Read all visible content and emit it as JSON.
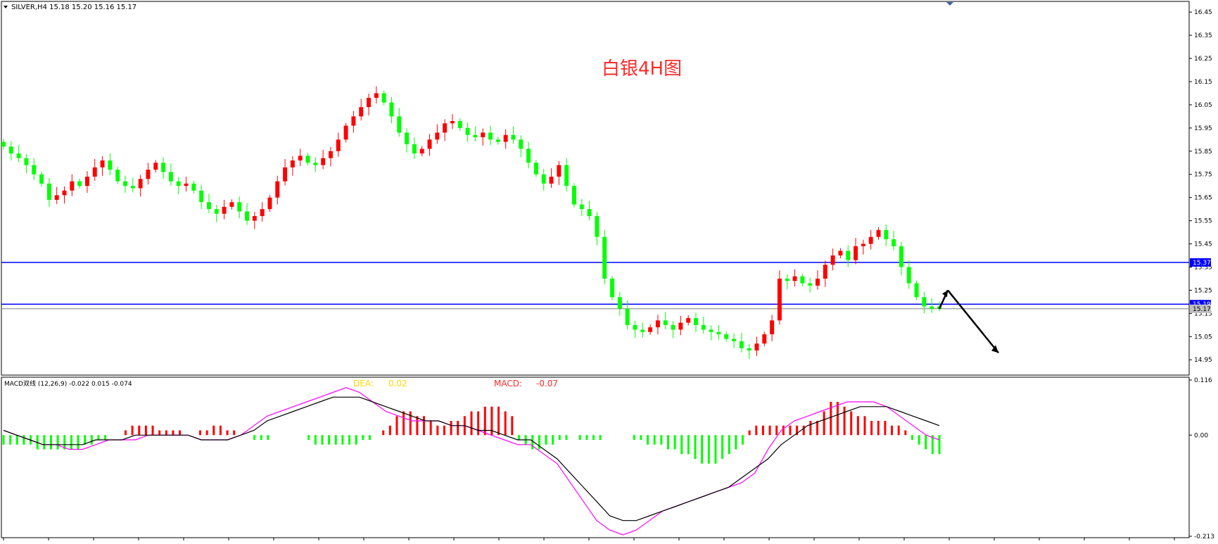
{
  "header": {
    "symbol_text": "SILVER,H4  15.18 15.20 15.16 15.17"
  },
  "annotation": {
    "title_text": "白银4H图",
    "title_color": "#ff2a2a"
  },
  "price_panel": {
    "axis_ticks": [
      "16.45",
      "16.35",
      "16.25",
      "16.15",
      "16.05",
      "15.95",
      "15.85",
      "15.75",
      "15.65",
      "15.55",
      "15.45",
      "15.35",
      "15.25",
      "15.15",
      "15.05",
      "14.95"
    ],
    "level_lines": [
      {
        "value": 15.37,
        "label": "15.37",
        "color": "#0000ff"
      },
      {
        "value": 15.19,
        "label": "15.19",
        "color": "#0000ff"
      }
    ],
    "current_price": {
      "value": 15.17,
      "label": "15.17",
      "color": "#808080"
    }
  },
  "macd_panel": {
    "header_text": "MACD双线 (12,26,9) -0.022 0.015 -0.074",
    "dea_label": "DEA:",
    "dea_value": "0.02",
    "dea_color": "#ffd700",
    "macd_label": "MACD:",
    "macd_value": "-0.07",
    "macd_color": "#ff2a2a",
    "axis_ticks": [
      "0.116",
      "0.00",
      "-0.213"
    ]
  },
  "chart_data": [
    {
      "type": "candlestick",
      "title": "白银4H图",
      "symbol": "SILVER,H4",
      "timeframe": "H4",
      "last_bar": {
        "open": 15.18,
        "high": 15.2,
        "low": 15.16,
        "close": 15.17
      },
      "y_range": [
        14.89,
        16.49
      ],
      "y_ticks": [
        16.45,
        16.35,
        16.25,
        16.15,
        16.05,
        15.95,
        15.85,
        15.75,
        15.65,
        15.55,
        15.45,
        15.35,
        15.25,
        15.15,
        15.05,
        14.95
      ],
      "horizontal_lines": [
        15.37,
        15.19
      ],
      "current_price": 15.17,
      "up_color": "#ff0000",
      "down_color": "#00ff00",
      "close_path": [
        15.87,
        15.84,
        15.82,
        15.79,
        15.75,
        15.71,
        15.64,
        15.66,
        15.68,
        15.72,
        15.7,
        15.74,
        15.78,
        15.81,
        15.77,
        15.72,
        15.7,
        15.69,
        15.73,
        15.77,
        15.8,
        15.76,
        15.72,
        15.7,
        15.71,
        15.68,
        15.63,
        15.6,
        15.58,
        15.61,
        15.63,
        15.59,
        15.55,
        15.57,
        15.6,
        15.65,
        15.72,
        15.78,
        15.81,
        15.83,
        15.8,
        15.79,
        15.82,
        15.85,
        15.9,
        15.96,
        16.0,
        16.04,
        16.08,
        16.1,
        16.06,
        16.0,
        15.93,
        15.88,
        15.84,
        15.86,
        15.9,
        15.93,
        15.97,
        15.98,
        15.95,
        15.92,
        15.91,
        15.93,
        15.9,
        15.89,
        15.92,
        15.9,
        15.86,
        15.8,
        15.75,
        15.71,
        15.74,
        15.79,
        15.7,
        15.62,
        15.6,
        15.57,
        15.48,
        15.3,
        15.22,
        15.17,
        15.1,
        15.08,
        15.07,
        15.09,
        15.12,
        15.1,
        15.08,
        15.11,
        15.13,
        15.1,
        15.08,
        15.07,
        15.06,
        15.04,
        15.03,
        15.0,
        14.99,
        15.02,
        15.06,
        15.12,
        15.3,
        15.29,
        15.31,
        15.28,
        15.27,
        15.3,
        15.36,
        15.4,
        15.42,
        15.38,
        15.44,
        15.45,
        15.48,
        15.51,
        15.47,
        15.44,
        15.35,
        15.28,
        15.22,
        15.18,
        15.17,
        15.17
      ],
      "annotations": [
        {
          "type": "arrow",
          "direction": "up",
          "color": "#000000"
        },
        {
          "type": "arrow",
          "direction": "down",
          "color": "#000000"
        }
      ]
    },
    {
      "type": "macd",
      "name": "MACD双线",
      "params": [
        12,
        26,
        9
      ],
      "values": {
        "first": -0.022,
        "second": 0.015,
        "third": -0.074
      },
      "dea": [
        0.01,
        0.0,
        -0.01,
        -0.02,
        -0.02,
        -0.02,
        -0.02,
        -0.01,
        -0.01,
        -0.01,
        0.0,
        0.0,
        0.0,
        0.0,
        -0.0,
        -0.01,
        -0.01,
        -0.01,
        0.0,
        0.01,
        0.03,
        0.04,
        0.05,
        0.06,
        0.07,
        0.08,
        0.08,
        0.08,
        0.07,
        0.06,
        0.05,
        0.04,
        0.03,
        0.03,
        0.02,
        0.02,
        0.01,
        0.01,
        0.0,
        -0.01,
        -0.01,
        -0.03,
        -0.05,
        -0.08,
        -0.11,
        -0.14,
        -0.17,
        -0.18,
        -0.18,
        -0.17,
        -0.16,
        -0.15,
        -0.14,
        -0.13,
        -0.12,
        -0.11,
        -0.09,
        -0.07,
        -0.05,
        -0.02,
        0.0,
        0.02,
        0.03,
        0.04,
        0.05,
        0.06,
        0.06,
        0.06,
        0.05,
        0.04,
        0.03,
        0.02
      ],
      "macd": -0.07,
      "y_range": [
        -0.213,
        0.116
      ],
      "y_ticks": [
        0.116,
        0.0,
        -0.213
      ],
      "histogram_colors": {
        "positive": "#ff0000",
        "negative": "#00ff00"
      },
      "line_colors": {
        "dif": "#ff00ff",
        "dea": "#000000"
      },
      "histogram": [
        -0.02,
        -0.02,
        -0.02,
        -0.02,
        -0.02,
        -0.03,
        -0.03,
        -0.03,
        -0.03,
        -0.03,
        -0.03,
        -0.03,
        -0.02,
        -0.02,
        -0.01,
        -0.01,
        0.0,
        0.0,
        0.01,
        0.02,
        0.02,
        0.02,
        0.02,
        0.01,
        0.01,
        0.01,
        0.01,
        0.0,
        0.0,
        0.01,
        0.01,
        0.02,
        0.02,
        0.01,
        0.01,
        0.0,
        0.0,
        -0.01,
        -0.01,
        -0.01,
        0.0,
        0.0,
        0.0,
        0.0,
        0.0,
        -0.01,
        -0.02,
        -0.02,
        -0.02,
        -0.02,
        -0.02,
        -0.02,
        -0.02,
        -0.01,
        -0.01,
        0.0,
        0.01,
        0.02,
        0.04,
        0.05,
        0.05,
        0.04,
        0.04,
        0.03,
        0.02,
        0.02,
        0.03,
        0.03,
        0.04,
        0.05,
        0.05,
        0.06,
        0.06,
        0.06,
        0.05,
        0.04,
        -0.01,
        -0.02,
        -0.03,
        -0.03,
        -0.02,
        -0.02,
        -0.01,
        -0.01,
        0.0,
        -0.01,
        -0.01,
        -0.01,
        -0.01,
        0.0,
        0.0,
        0.0,
        0.0,
        -0.01,
        -0.01,
        -0.02,
        -0.02,
        -0.02,
        -0.03,
        -0.03,
        -0.04,
        -0.04,
        -0.05,
        -0.06,
        -0.06,
        -0.06,
        -0.05,
        -0.04,
        -0.03,
        -0.02,
        0.01,
        0.02,
        0.02,
        0.02,
        0.02,
        0.02,
        0.02,
        0.02,
        0.02,
        0.03,
        0.03,
        0.05,
        0.07,
        0.07,
        0.06,
        0.05,
        0.04,
        0.04,
        0.03,
        0.03,
        0.03,
        0.02,
        0.02,
        0.01,
        -0.01,
        -0.02,
        -0.03,
        -0.04,
        -0.04
      ],
      "dif": [
        0.01,
        0.0,
        -0.01,
        -0.02,
        -0.02,
        -0.03,
        -0.03,
        -0.02,
        -0.01,
        -0.01,
        -0.01,
        -0.0,
        0.0,
        0.0,
        0.0,
        -0.01,
        -0.01,
        -0.01,
        0.0,
        0.02,
        0.04,
        0.05,
        0.06,
        0.07,
        0.08,
        0.09,
        0.1,
        0.09,
        0.07,
        0.05,
        0.04,
        0.03,
        0.03,
        0.03,
        0.02,
        0.02,
        0.01,
        0.0,
        -0.01,
        -0.02,
        -0.02,
        -0.04,
        -0.06,
        -0.1,
        -0.14,
        -0.18,
        -0.2,
        -0.21,
        -0.2,
        -0.18,
        -0.16,
        -0.15,
        -0.14,
        -0.13,
        -0.12,
        -0.11,
        -0.1,
        -0.08,
        -0.03,
        0.01,
        0.03,
        0.04,
        0.05,
        0.06,
        0.07,
        0.07,
        0.07,
        0.06,
        0.04,
        0.02,
        0.0,
        -0.01
      ]
    }
  ]
}
